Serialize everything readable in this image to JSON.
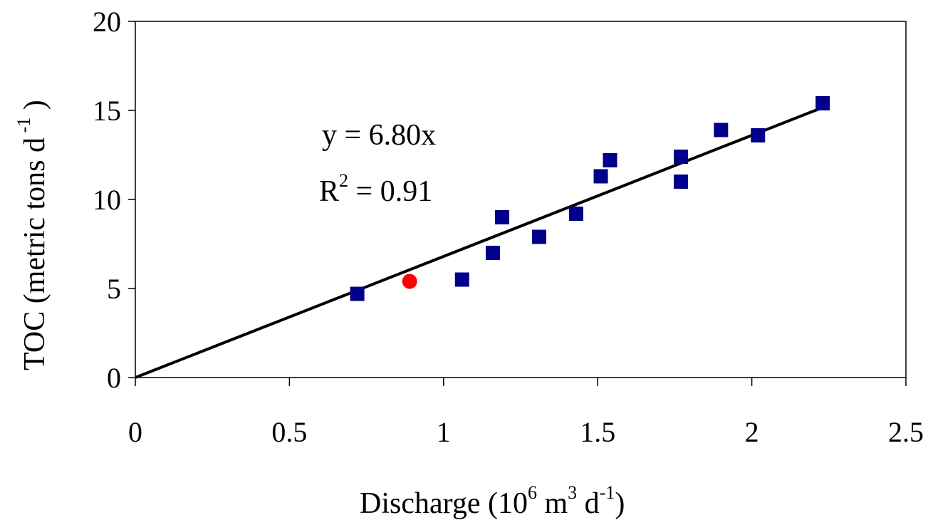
{
  "chart_data": {
    "type": "scatter",
    "title": "",
    "xlabel": {
      "prefix": "Discharge (10",
      "sup1": "6",
      "mid1": " m",
      "sup2": "3",
      "mid2": " d",
      "sup3": "-1",
      "suffix": ")"
    },
    "ylabel": {
      "prefix": "TOC (metric tons d",
      "sup": " -1",
      "suffix": " )"
    },
    "xlim": [
      0,
      2.5
    ],
    "ylim": [
      0,
      20
    ],
    "x_ticks": [
      "0",
      "0.5",
      "1",
      "1.5",
      "2",
      "2.5"
    ],
    "x_tick_values": [
      0,
      0.5,
      1,
      1.5,
      2,
      2.5
    ],
    "y_ticks": [
      "0",
      "5",
      "10",
      "15",
      "20"
    ],
    "y_tick_values": [
      0,
      5,
      10,
      15,
      20
    ],
    "grid": false,
    "series": [
      {
        "marker": "square",
        "color": "#00008b",
        "points": [
          {
            "x": 0.72,
            "y": 4.7
          },
          {
            "x": 1.06,
            "y": 5.5
          },
          {
            "x": 1.16,
            "y": 7.0
          },
          {
            "x": 1.19,
            "y": 9.0
          },
          {
            "x": 1.31,
            "y": 7.9
          },
          {
            "x": 1.43,
            "y": 9.2
          },
          {
            "x": 1.51,
            "y": 11.3
          },
          {
            "x": 1.54,
            "y": 12.2
          },
          {
            "x": 1.77,
            "y": 11.0
          },
          {
            "x": 1.77,
            "y": 12.4
          },
          {
            "x": 1.9,
            "y": 13.9
          },
          {
            "x": 2.02,
            "y": 13.6
          },
          {
            "x": 2.23,
            "y": 15.4
          }
        ]
      },
      {
        "marker": "circle",
        "color": "#ff0000",
        "points": [
          {
            "x": 0.89,
            "y": 5.4
          }
        ]
      }
    ],
    "trendline": {
      "slope": 6.8,
      "intercept": 0,
      "x_range": [
        0,
        2.23
      ],
      "color": "#000000"
    },
    "annotations": {
      "equation": "y = 6.80x",
      "r2_prefix": "R",
      "r2_sup": "2",
      "r2_suffix": " = 0.91"
    }
  }
}
